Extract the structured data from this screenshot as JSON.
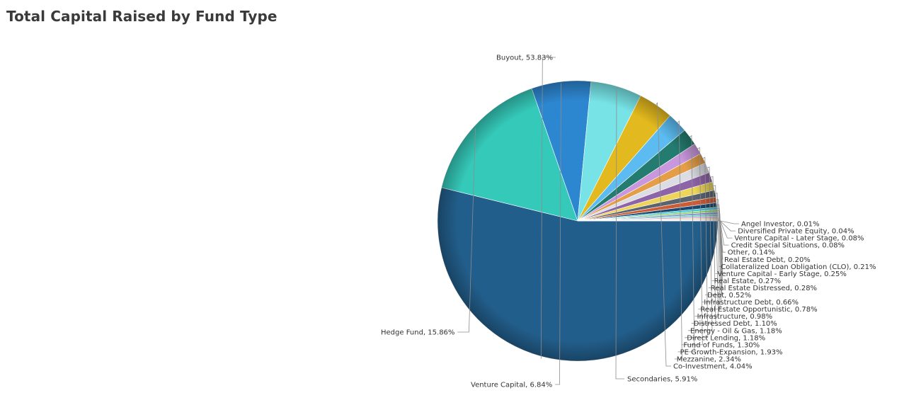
{
  "chart_title": "Total Capital Raised by Fund Type",
  "chart_data": {
    "type": "pie",
    "title": "Total Capital Raised by Fund Type",
    "unit": "%",
    "slices": [
      {
        "label": "Buyout, 53.83%",
        "name": "Buyout",
        "value": 53.83,
        "color": "#225e8b"
      },
      {
        "label": "Hedge Fund, 15.86%",
        "name": "Hedge Fund",
        "value": 15.86,
        "color": "#35c9b9"
      },
      {
        "label": "Venture Capital, 6.84%",
        "name": "Venture Capital",
        "value": 6.84,
        "color": "#2d86d0"
      },
      {
        "label": "Secondaries, 5.91%",
        "name": "Secondaries",
        "value": 5.91,
        "color": "#77e3e6"
      },
      {
        "label": "Co-Investment, 4.04%",
        "name": "Co-Investment",
        "value": 4.04,
        "color": "#e2b91e"
      },
      {
        "label": "Mezzanine, 2.34%",
        "name": "Mezzanine",
        "value": 2.34,
        "color": "#5cbcf1"
      },
      {
        "label": "PE Growth-Expansion, 1.93%",
        "name": "PE Growth-Expansion",
        "value": 1.93,
        "color": "#247c70"
      },
      {
        "label": "Fund of Funds, 1.30%",
        "name": "Fund of Funds",
        "value": 1.3,
        "color": "#c997dd"
      },
      {
        "label": "Direct Lending, 1.18%",
        "name": "Direct Lending",
        "value": 1.18,
        "color": "#e39e47"
      },
      {
        "label": "Energy - Oil & Gas, 1.18%",
        "name": "Energy - Oil & Gas",
        "value": 1.18,
        "color": "#dcdce4"
      },
      {
        "label": "Distressed Debt, 1.10%",
        "name": "Distressed Debt",
        "value": 1.1,
        "color": "#8e64a9"
      },
      {
        "label": "Infrastructure, 0.98%",
        "name": "Infrastructure",
        "value": 0.98,
        "color": "#ecd55a"
      },
      {
        "label": "Real Estate Opportunistic, 0.78%",
        "name": "Real Estate Opportunistic",
        "value": 0.78,
        "color": "#5a6470"
      },
      {
        "label": "Infrastructure Debt, 0.66%",
        "name": "Infrastructure Debt",
        "value": 0.66,
        "color": "#cc5c36"
      },
      {
        "label": "Debt, 0.52%",
        "name": "Debt",
        "value": 0.52,
        "color": "#1a4a72"
      },
      {
        "label": "Real Estate Distressed, 0.28%",
        "name": "Real Estate Distressed",
        "value": 0.28,
        "color": "#3fc4d6"
      },
      {
        "label": "Real Estate, 0.27%",
        "name": "Real Estate",
        "value": 0.27,
        "color": "#8fd26e"
      },
      {
        "label": "Venture Capital - Early Stage, 0.25%",
        "name": "Venture Capital - Early Stage",
        "value": 0.25,
        "color": "#7b8fd6"
      },
      {
        "label": "Collateralized Loan Obligation (CLO), 0.21%",
        "name": "Collateralized Loan Obligation (CLO)",
        "value": 0.21,
        "color": "#5ed0b6"
      },
      {
        "label": "Real Estate Debt, 0.20%",
        "name": "Real Estate Debt",
        "value": 0.2,
        "color": "#d0a7e0"
      },
      {
        "label": "Other, 0.14%",
        "name": "Other",
        "value": 0.14,
        "color": "#e8c270"
      },
      {
        "label": "Credit Special Situations, 0.08%",
        "name": "Credit Special Situations",
        "value": 0.08,
        "color": "#9ab0c8"
      },
      {
        "label": "Venture Capital - Later Stage, 0.08%",
        "name": "Venture Capital - Later Stage",
        "value": 0.08,
        "color": "#f0a0a0"
      },
      {
        "label": "Diversified Private Equity, 0.04%",
        "name": "Diversified Private Equity",
        "value": 0.04,
        "color": "#a0a0a8"
      },
      {
        "label": "Angel Investor, 0.01%",
        "name": "Angel Investor",
        "value": 0.01,
        "color": "#6fa8dc"
      }
    ]
  }
}
